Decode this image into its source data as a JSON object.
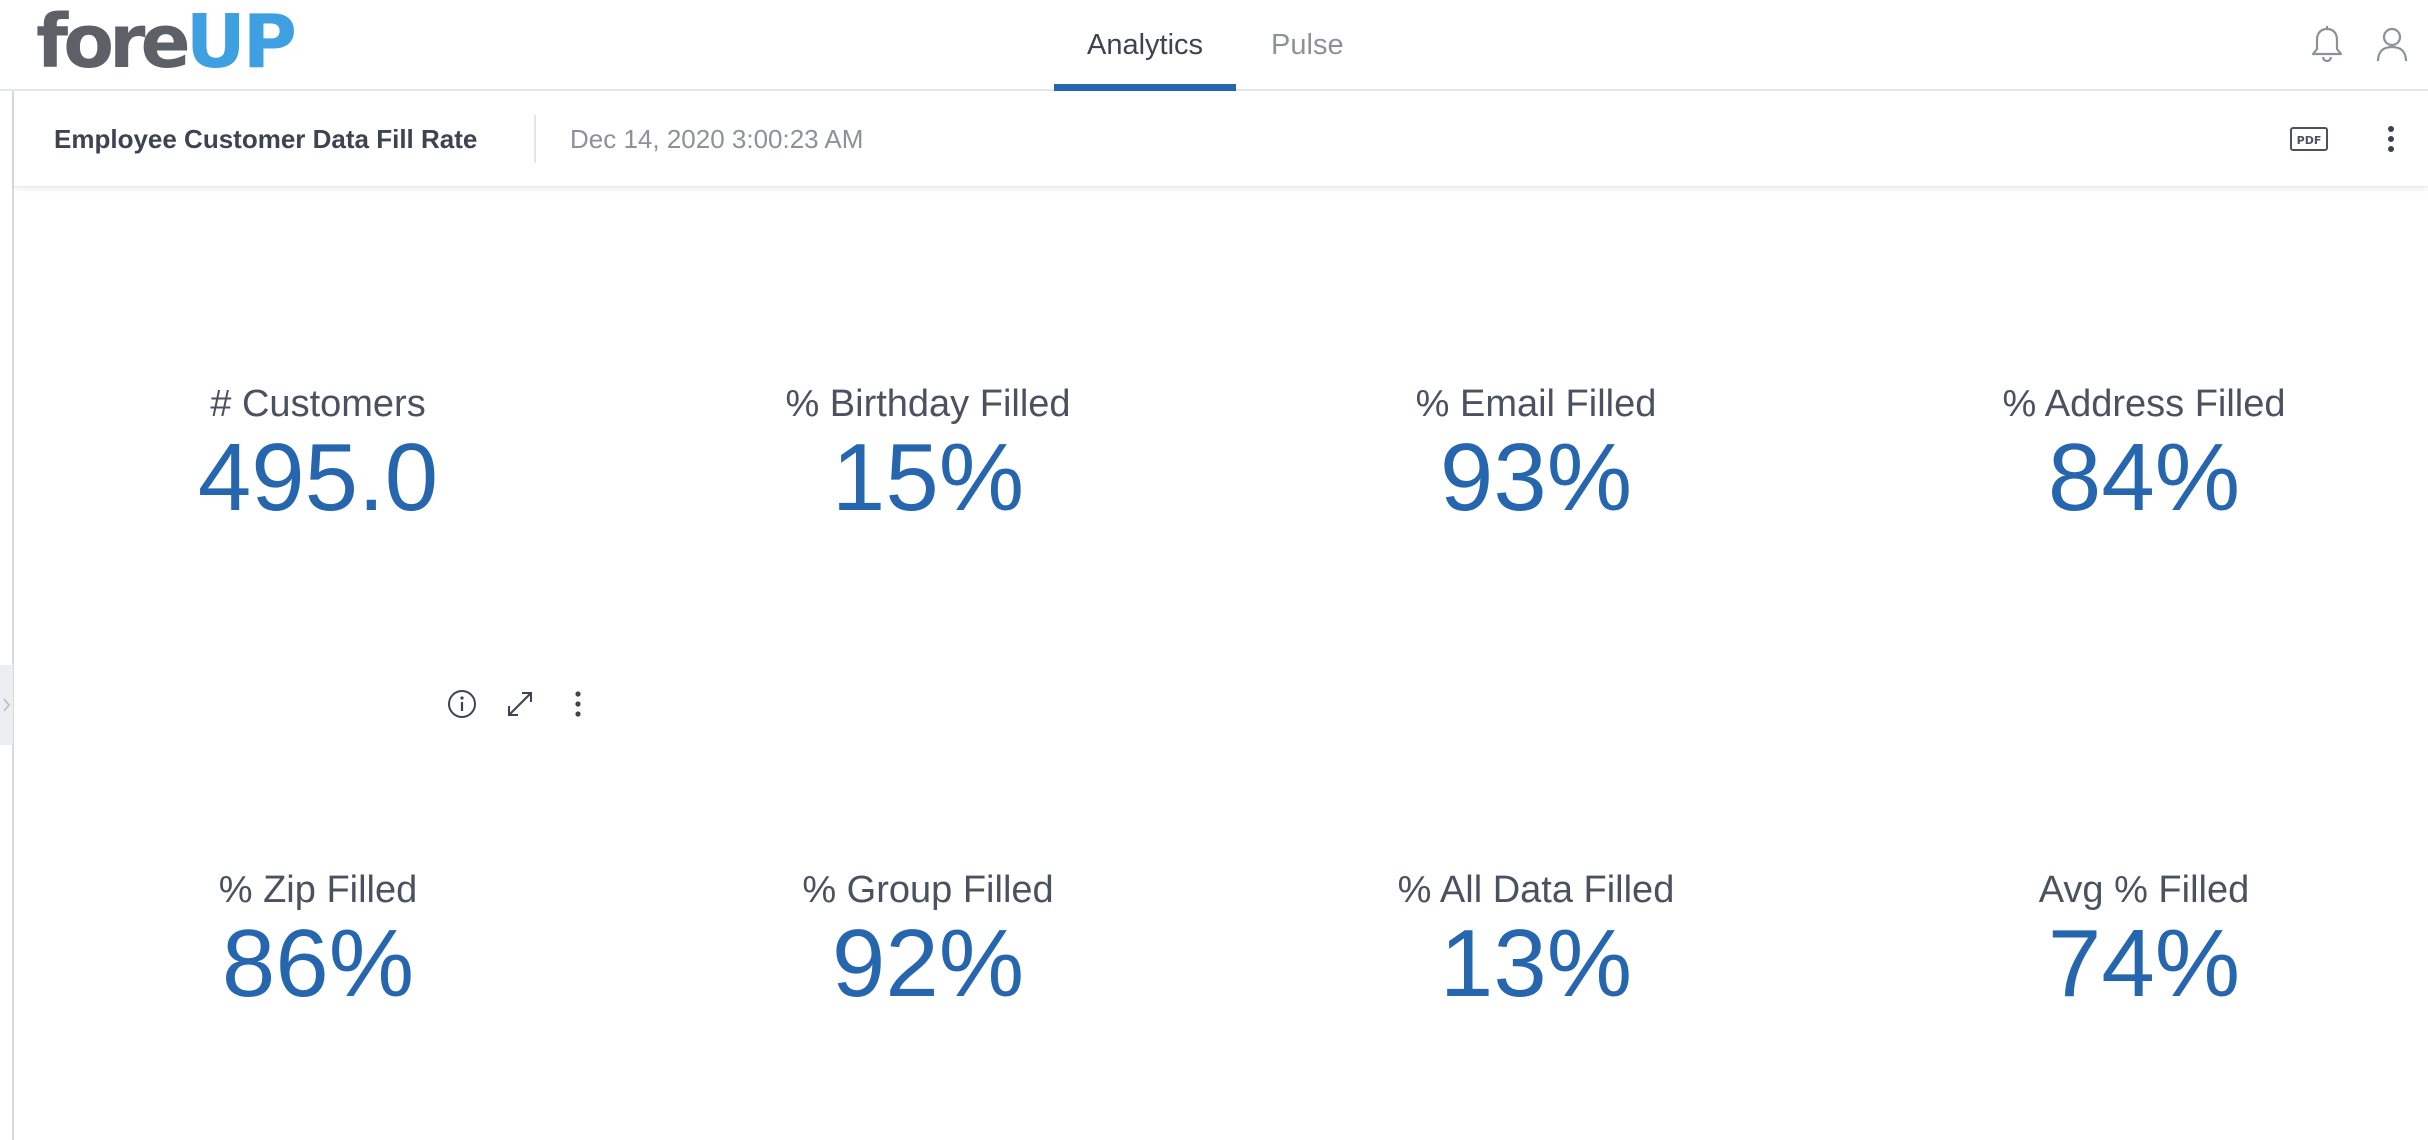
{
  "app": {
    "logo": {
      "part1": "fore",
      "part2": "UP"
    },
    "tabs": [
      {
        "label": "Analytics",
        "active": true
      },
      {
        "label": "Pulse",
        "active": false
      }
    ],
    "icons": {
      "bell": "bell-icon",
      "user": "user-icon"
    }
  },
  "dashboard": {
    "title": "Employee Customer Data Fill Rate",
    "timestamp": "Dec 14, 2020 3:00:23 AM",
    "actions": {
      "pdf_label": "PDF"
    }
  },
  "tiles": [
    {
      "label": "# Customers",
      "value": "495.0"
    },
    {
      "label": "% Birthday Filled",
      "value": "15%"
    },
    {
      "label": "% Email Filled",
      "value": "93%"
    },
    {
      "label": "% Address Filled",
      "value": "84%"
    },
    {
      "label": "% Zip Filled",
      "value": "86%"
    },
    {
      "label": "% Group Filled",
      "value": "92%"
    },
    {
      "label": "% All Data Filled",
      "value": "13%"
    },
    {
      "label": "Avg % Filled",
      "value": "74%"
    }
  ],
  "colors": {
    "accent": "#2566ae",
    "logo_blue": "#3ea0e0",
    "logo_gray": "#5d6066",
    "text_dark": "#3d4451",
    "text_muted": "#8d929a"
  }
}
